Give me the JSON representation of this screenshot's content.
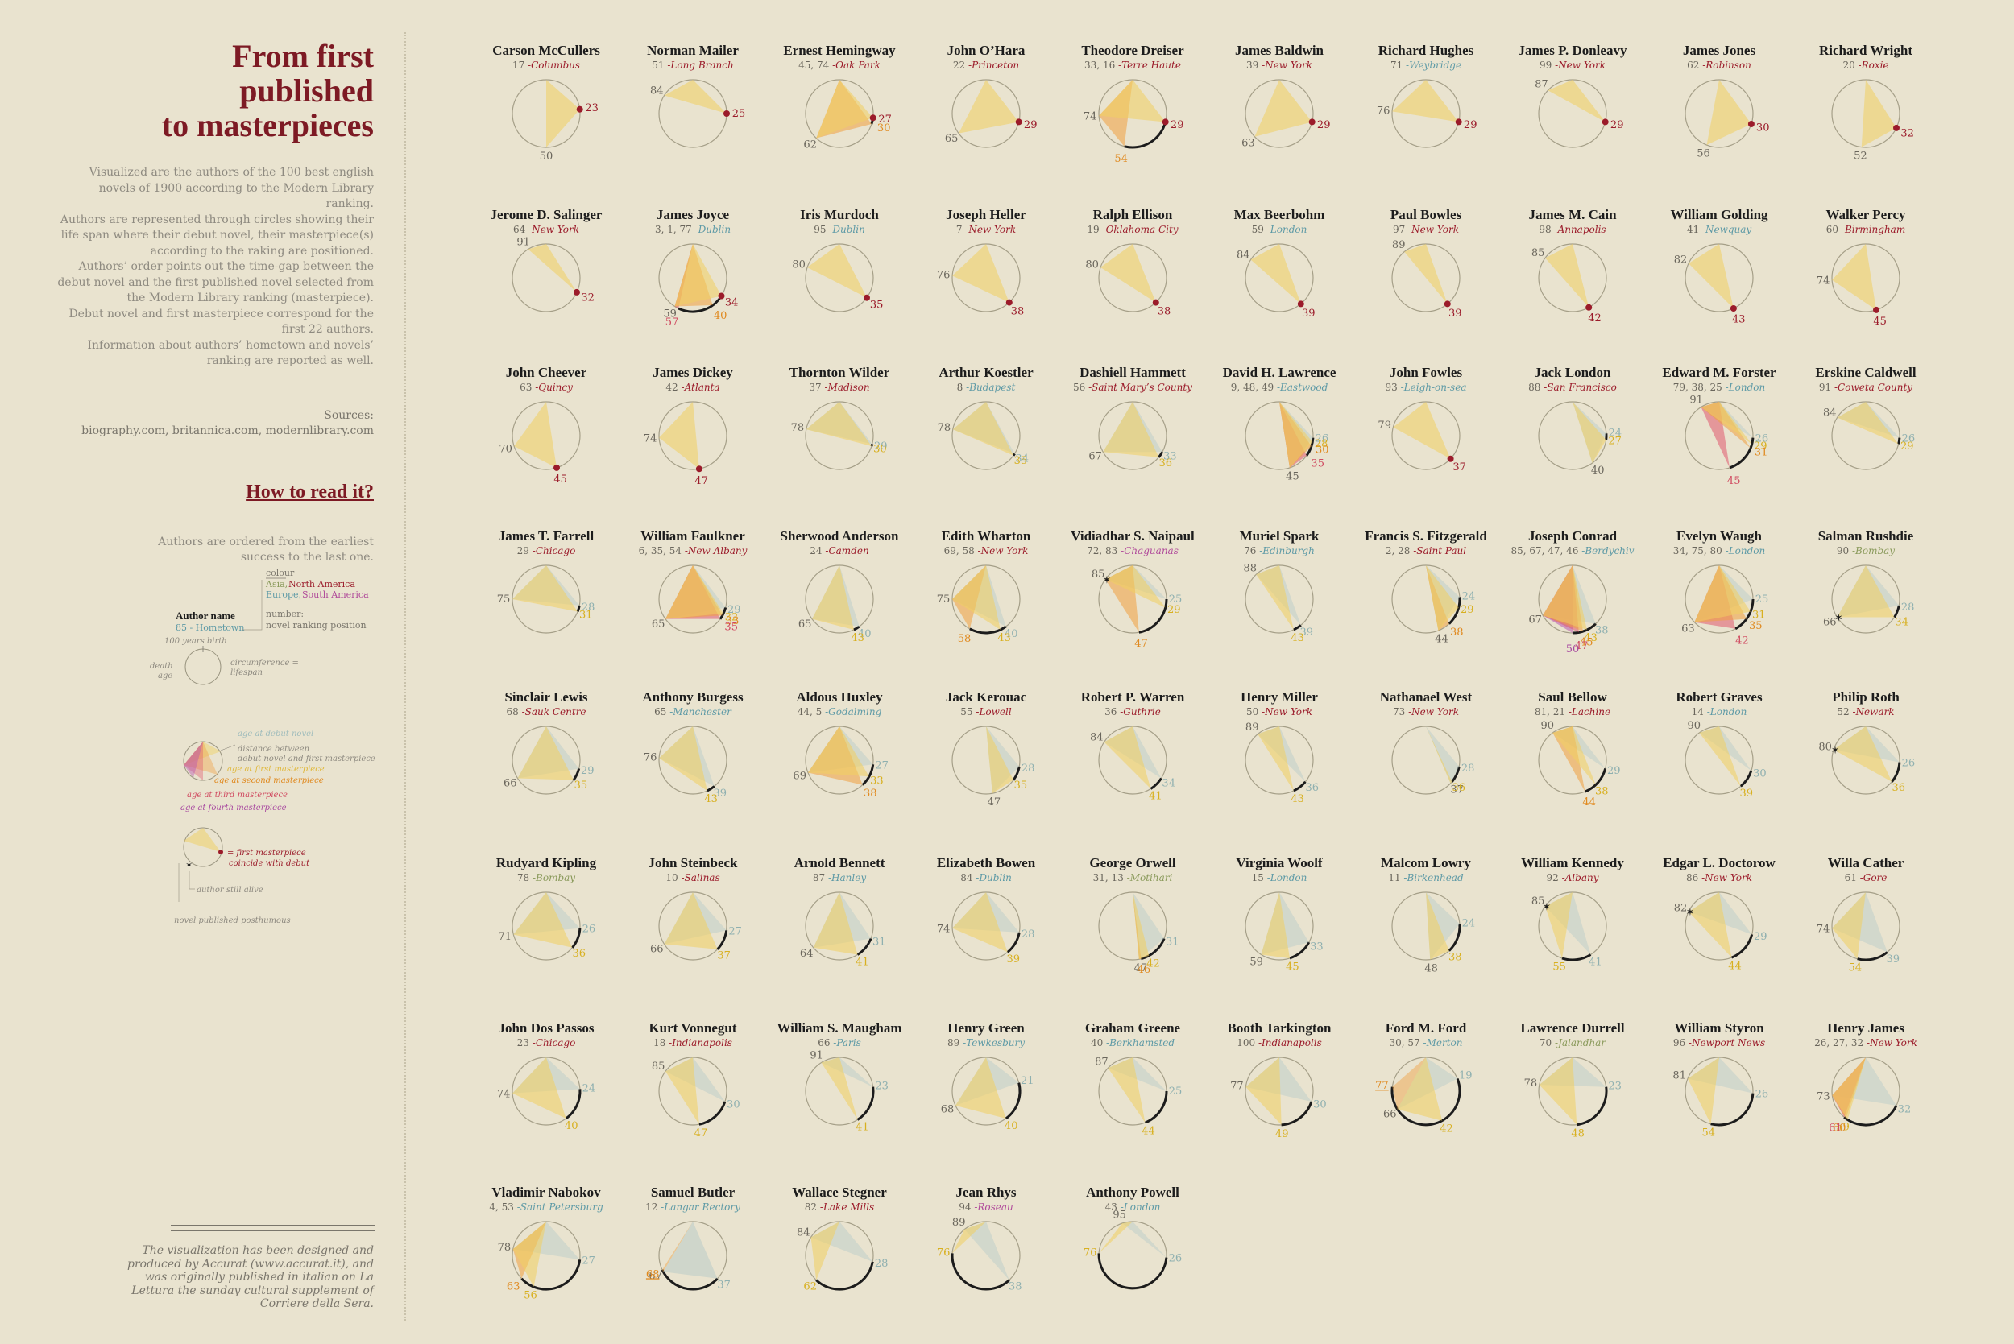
{
  "title_lines": [
    "From first",
    "published",
    "to masterpieces"
  ],
  "intro": [
    "Visualized are the authors of the 100 best english novels of 1900 according to the Modern Library ranking.",
    "Authors are represented through circles showing their life span where their debut novel, their masterpiece(s) according to the raking are positioned.",
    "Authors’ order points out the time-gap between the debut novel and the first published novel selected from the Modern Library ranking (masterpiece).",
    "Debut novel and first masterpiece correspond for the first 22 authors.",
    "Information about authors’ hometown and novels’ ranking are reported as well."
  ],
  "sources_label": "Sources:",
  "sources_text": "biography.com, britannica.com, modernlibrary.com",
  "howto_title": "How to read it?",
  "howto_intro": "Authors are ordered from the earliest success to the last one.",
  "legend": {
    "colour": "colour",
    "asia": "Asia,",
    "north_america": "North America",
    "europe": "Europe,",
    "south_america": "South America",
    "author_name": "Author name",
    "hometown_line": "85 - Hometown",
    "number": "number:",
    "ranking": "novel ranking position",
    "birth": "100 years birth",
    "death_age_1": "death",
    "death_age_2": "age",
    "circ_1": "circumference =",
    "circ_2": "lifespan",
    "debut": "age at debut novel",
    "distance_1": "distance between",
    "distance_2": "debut novel and first masterpiece",
    "first": "age at first masterpiece",
    "second": "age at second masterpiece",
    "third": "age at third masterpiece",
    "fourth": "age at fourth masterpiece",
    "coincide_1": "= first masterpiece",
    "coincide_2": "coincide with debut",
    "alive": "author still alive",
    "posthumous": "novel published posthumous"
  },
  "footer": "The visualization has been designed and produced by Accurat (www.accurat.it), and was originally published in italian on La Lettura the sunday cultural supplement of Corriere della Sera.",
  "colors": {
    "title": "#7d1a24",
    "north_america": "#9b1b2a",
    "europe": "#5e9aa6",
    "asia": "#8a9a5b",
    "south_america": "#b04a9a",
    "debut": "#b6c9c8",
    "first": "#f0d060",
    "second": "#f0a040",
    "third": "#e05a70",
    "fourth": "#b858b0"
  },
  "chart_data": {
    "type": "radial-small-multiples",
    "title": "From first published to masterpieces",
    "encoding": "circle circumference = lifespan (100 years = full turn, 0 at top); triangles connect age at death, debut novel and masterpieces",
    "authors": [
      {
        "name": "Carson McCullers",
        "ranks": "17",
        "hometown": "Columbus",
        "region": "na",
        "death": 50,
        "debut": 23,
        "masters": [
          23
        ]
      },
      {
        "name": "Norman Mailer",
        "ranks": "51",
        "hometown": "Long Branch",
        "region": "na",
        "death": 84,
        "debut": 25,
        "masters": [
          25
        ]
      },
      {
        "name": "Ernest Hemingway",
        "ranks": "45, 74",
        "hometown": "Oak Park",
        "region": "na",
        "death": 62,
        "debut": 27,
        "masters": [
          27,
          30
        ]
      },
      {
        "name": "John O’Hara",
        "ranks": "22",
        "hometown": "Princeton",
        "region": "na",
        "death": 65,
        "debut": 29,
        "masters": [
          29
        ]
      },
      {
        "name": "Theodore Dreiser",
        "ranks": "33, 16",
        "hometown": "Terre Haute",
        "region": "na",
        "death": 74,
        "debut": 29,
        "masters": [
          29,
          54
        ]
      },
      {
        "name": "James Baldwin",
        "ranks": "39",
        "hometown": "New York",
        "region": "na",
        "death": 63,
        "debut": 29,
        "masters": [
          29
        ]
      },
      {
        "name": "Richard Hughes",
        "ranks": "71",
        "hometown": "Weybridge",
        "region": "eu",
        "death": 76,
        "debut": 29,
        "masters": [
          29
        ]
      },
      {
        "name": "James P. Donleavy",
        "ranks": "99",
        "hometown": "New York",
        "region": "na",
        "death": 87,
        "debut": 29,
        "masters": [
          29
        ]
      },
      {
        "name": "James Jones",
        "ranks": "62",
        "hometown": "Robinson",
        "region": "na",
        "death": 56,
        "debut": 30,
        "masters": [
          30
        ]
      },
      {
        "name": "Richard Wright",
        "ranks": "20",
        "hometown": "Roxie",
        "region": "na",
        "death": 52,
        "debut": 32,
        "masters": [
          32
        ]
      },
      {
        "name": "Jerome D. Salinger",
        "ranks": "64",
        "hometown": "New York",
        "region": "na",
        "death": 91,
        "debut": 32,
        "masters": [
          32
        ]
      },
      {
        "name": "James Joyce",
        "ranks": "3, 1, 77",
        "hometown": "Dublin",
        "region": "eu",
        "death": 59,
        "debut": 34,
        "masters": [
          34,
          40,
          57
        ]
      },
      {
        "name": "Iris Murdoch",
        "ranks": "95",
        "hometown": "Dublin",
        "region": "eu",
        "death": 80,
        "debut": 35,
        "masters": [
          35
        ]
      },
      {
        "name": "Joseph Heller",
        "ranks": "7",
        "hometown": "New York",
        "region": "na",
        "death": 76,
        "debut": 38,
        "masters": [
          38
        ]
      },
      {
        "name": "Ralph Ellison",
        "ranks": "19",
        "hometown": "Oklahoma City",
        "region": "na",
        "death": 80,
        "debut": 38,
        "masters": [
          38
        ]
      },
      {
        "name": "Max Beerbohm",
        "ranks": "59",
        "hometown": "London",
        "region": "eu",
        "death": 84,
        "debut": 39,
        "masters": [
          39
        ]
      },
      {
        "name": "Paul Bowles",
        "ranks": "97",
        "hometown": "New York",
        "region": "na",
        "death": 89,
        "debut": 39,
        "masters": [
          39
        ]
      },
      {
        "name": "James M. Cain",
        "ranks": "98",
        "hometown": "Annapolis",
        "region": "na",
        "death": 85,
        "debut": 42,
        "masters": [
          42
        ]
      },
      {
        "name": "William Golding",
        "ranks": "41",
        "hometown": "Newquay",
        "region": "eu",
        "death": 82,
        "debut": 43,
        "masters": [
          43
        ]
      },
      {
        "name": "Walker Percy",
        "ranks": "60",
        "hometown": "Birmingham",
        "region": "na",
        "death": 74,
        "debut": 45,
        "masters": [
          45
        ]
      },
      {
        "name": "John Cheever",
        "ranks": "63",
        "hometown": "Quincy",
        "region": "na",
        "death": 70,
        "debut": 45,
        "masters": [
          45
        ]
      },
      {
        "name": "James Dickey",
        "ranks": "42",
        "hometown": "Atlanta",
        "region": "na",
        "death": 74,
        "debut": 47,
        "masters": [
          47
        ]
      },
      {
        "name": "Thornton Wilder",
        "ranks": "37",
        "hometown": "Madison",
        "region": "na",
        "death": 78,
        "debut": 29,
        "masters": [
          30
        ]
      },
      {
        "name": "Arthur Koestler",
        "ranks": "8",
        "hometown": "Budapest",
        "region": "eu",
        "death": 78,
        "debut": 34,
        "masters": [
          35
        ]
      },
      {
        "name": "Dashiell Hammett",
        "ranks": "56",
        "hometown": "Saint Mary’s County",
        "region": "na",
        "death": 67,
        "debut": 33,
        "masters": [
          36
        ]
      },
      {
        "name": "David H. Lawrence",
        "ranks": "9, 48, 49",
        "hometown": "Eastwood",
        "region": "eu",
        "death": 45,
        "debut": 26,
        "masters": [
          28,
          30,
          35
        ]
      },
      {
        "name": "John Fowles",
        "ranks": "93",
        "hometown": "Leigh-on-sea",
        "region": "eu",
        "death": 79,
        "debut": 37,
        "masters": [
          37
        ]
      },
      {
        "name": "Jack London",
        "ranks": "88",
        "hometown": "San Francisco",
        "region": "na",
        "death": 40,
        "debut": 24,
        "masters": [
          27
        ]
      },
      {
        "name": "Edward M. Forster",
        "ranks": "79, 38, 25",
        "hometown": "London",
        "region": "eu",
        "death": 91,
        "debut": 26,
        "masters": [
          29,
          31,
          45
        ]
      },
      {
        "name": "Erskine Caldwell",
        "ranks": "91",
        "hometown": "Coweta County",
        "region": "na",
        "death": 84,
        "debut": 26,
        "masters": [
          29
        ]
      },
      {
        "name": "James T. Farrell",
        "ranks": "29",
        "hometown": "Chicago",
        "region": "na",
        "death": 75,
        "debut": 28,
        "masters": [
          31
        ]
      },
      {
        "name": "William Faulkner",
        "ranks": "6, 35, 54",
        "hometown": "New Albany",
        "region": "na",
        "death": 65,
        "debut": 29,
        "masters": [
          32,
          33,
          35
        ]
      },
      {
        "name": "Sherwood Anderson",
        "ranks": "24",
        "hometown": "Camden",
        "region": "na",
        "death": 65,
        "debut": 40,
        "masters": [
          43
        ]
      },
      {
        "name": "Edith Wharton",
        "ranks": "69, 58",
        "hometown": "New York",
        "region": "na",
        "death": 75,
        "debut": 40,
        "masters": [
          43,
          58
        ]
      },
      {
        "name": "Vidiadhar S. Naipaul",
        "ranks": "72, 83",
        "hometown": "Chaguanas",
        "region": "sa",
        "death": 85,
        "alive": true,
        "debut": 25,
        "masters": [
          29,
          47
        ]
      },
      {
        "name": "Muriel Spark",
        "ranks": "76",
        "hometown": "Edinburgh",
        "region": "eu",
        "death": 88,
        "debut": 39,
        "masters": [
          43
        ]
      },
      {
        "name": "Francis S. Fitzgerald",
        "ranks": "2, 28",
        "hometown": "Saint Paul",
        "region": "na",
        "death": 44,
        "debut": 24,
        "masters": [
          29,
          38
        ]
      },
      {
        "name": "Joseph Conrad",
        "ranks": "85, 67, 47, 46",
        "hometown": "Berdychiv",
        "region": "eu",
        "death": 67,
        "debut": 38,
        "masters": [
          43,
          45,
          47,
          50
        ]
      },
      {
        "name": "Evelyn Waugh",
        "ranks": "34, 75, 80",
        "hometown": "London",
        "region": "eu",
        "death": 63,
        "debut": 25,
        "masters": [
          31,
          35,
          42
        ]
      },
      {
        "name": "Salman Rushdie",
        "ranks": "90",
        "hometown": "Bombay",
        "region": "as",
        "death": 66,
        "alive": true,
        "debut": 28,
        "masters": [
          34
        ]
      },
      {
        "name": "Sinclair Lewis",
        "ranks": "68",
        "hometown": "Sauk Centre",
        "region": "na",
        "death": 66,
        "debut": 29,
        "masters": [
          35
        ]
      },
      {
        "name": "Anthony Burgess",
        "ranks": "65",
        "hometown": "Manchester",
        "region": "eu",
        "death": 76,
        "debut": 39,
        "masters": [
          43
        ]
      },
      {
        "name": "Aldous Huxley",
        "ranks": "44, 5",
        "hometown": "Godalming",
        "region": "eu",
        "death": 69,
        "debut": 27,
        "masters": [
          33,
          38
        ]
      },
      {
        "name": "Jack Kerouac",
        "ranks": "55",
        "hometown": "Lowell",
        "region": "na",
        "death": 47,
        "debut": 28,
        "masters": [
          35
        ]
      },
      {
        "name": "Robert P. Warren",
        "ranks": "36",
        "hometown": "Guthrie",
        "region": "na",
        "death": 84,
        "debut": 34,
        "masters": [
          41
        ]
      },
      {
        "name": "Henry Miller",
        "ranks": "50",
        "hometown": "New York",
        "region": "na",
        "death": 89,
        "debut": 36,
        "masters": [
          43
        ]
      },
      {
        "name": "Nathanael West",
        "ranks": "73",
        "hometown": "New York",
        "region": "na",
        "death": 37,
        "debut": 28,
        "masters": [
          36
        ]
      },
      {
        "name": "Saul Bellow",
        "ranks": "81, 21",
        "hometown": "Lachine",
        "region": "na",
        "death": 90,
        "debut": 29,
        "masters": [
          38,
          44
        ]
      },
      {
        "name": "Robert Graves",
        "ranks": "14",
        "hometown": "London",
        "region": "eu",
        "death": 90,
        "debut": 30,
        "masters": [
          39
        ]
      },
      {
        "name": "Philip Roth",
        "ranks": "52",
        "hometown": "Newark",
        "region": "na",
        "death": 80,
        "alive": true,
        "debut": 26,
        "masters": [
          36
        ]
      },
      {
        "name": "Rudyard Kipling",
        "ranks": "78",
        "hometown": "Bombay",
        "region": "as",
        "death": 71,
        "debut": 26,
        "masters": [
          36
        ]
      },
      {
        "name": "John Steinbeck",
        "ranks": "10",
        "hometown": "Salinas",
        "region": "na",
        "death": 66,
        "debut": 27,
        "masters": [
          37
        ]
      },
      {
        "name": "Arnold Bennett",
        "ranks": "87",
        "hometown": "Hanley",
        "region": "eu",
        "death": 64,
        "debut": 31,
        "masters": [
          41
        ]
      },
      {
        "name": "Elizabeth Bowen",
        "ranks": "84",
        "hometown": "Dublin",
        "region": "eu",
        "death": 74,
        "debut": 28,
        "masters": [
          39
        ]
      },
      {
        "name": "George Orwell",
        "ranks": "31, 13",
        "hometown": "Motihari",
        "region": "as",
        "death": 47,
        "debut": 31,
        "masters": [
          42,
          46
        ]
      },
      {
        "name": "Virginia Woolf",
        "ranks": "15",
        "hometown": "London",
        "region": "eu",
        "death": 59,
        "debut": 33,
        "masters": [
          45
        ]
      },
      {
        "name": "Malcom Lowry",
        "ranks": "11",
        "hometown": "Birkenhead",
        "region": "eu",
        "death": 48,
        "debut": 24,
        "masters": [
          38
        ]
      },
      {
        "name": "William Kennedy",
        "ranks": "92",
        "hometown": "Albany",
        "region": "na",
        "death": 85,
        "alive": true,
        "debut": 41,
        "masters": [
          55
        ]
      },
      {
        "name": "Edgar L. Doctorow",
        "ranks": "86",
        "hometown": "New York",
        "region": "na",
        "death": 82,
        "alive": true,
        "debut": 29,
        "masters": [
          44
        ]
      },
      {
        "name": "Willa Cather",
        "ranks": "61",
        "hometown": "Gore",
        "region": "na",
        "death": 74,
        "debut": 39,
        "masters": [
          54
        ]
      },
      {
        "name": "John Dos Passos",
        "ranks": "23",
        "hometown": "Chicago",
        "region": "na",
        "death": 74,
        "debut": 24,
        "masters": [
          40
        ]
      },
      {
        "name": "Kurt Vonnegut",
        "ranks": "18",
        "hometown": "Indianapolis",
        "region": "na",
        "death": 85,
        "debut": 30,
        "masters": [
          47
        ]
      },
      {
        "name": "William S. Maugham",
        "ranks": "66",
        "hometown": "Paris",
        "region": "eu",
        "death": 91,
        "debut": 23,
        "masters": [
          41
        ]
      },
      {
        "name": "Henry Green",
        "ranks": "89",
        "hometown": "Tewkesbury",
        "region": "eu",
        "death": 68,
        "debut": 21,
        "masters": [
          40
        ]
      },
      {
        "name": "Graham Greene",
        "ranks": "40",
        "hometown": "Berkhamsted",
        "region": "eu",
        "death": 87,
        "debut": 25,
        "masters": [
          44
        ]
      },
      {
        "name": "Booth Tarkington",
        "ranks": "100",
        "hometown": "Indianapolis",
        "region": "na",
        "death": 77,
        "debut": 30,
        "masters": [
          49
        ]
      },
      {
        "name": "Ford M. Ford",
        "ranks": "30, 57",
        "hometown": "Merton",
        "region": "eu",
        "death": 66,
        "debut": 19,
        "masters": [
          42
        ],
        "posthumous": [
          77
        ]
      },
      {
        "name": "Lawrence Durrell",
        "ranks": "70",
        "hometown": "Jalandhar",
        "region": "as",
        "death": 78,
        "debut": 23,
        "masters": [
          48
        ]
      },
      {
        "name": "William Styron",
        "ranks": "96",
        "hometown": "Newport News",
        "region": "na",
        "death": 81,
        "debut": 26,
        "masters": [
          54
        ]
      },
      {
        "name": "Henry James",
        "ranks": "26, 27, 32",
        "hometown": "New York",
        "region": "na",
        "death": 73,
        "debut": 32,
        "masters": [
          59,
          60,
          61
        ]
      },
      {
        "name": "Vladimir  Nabokov",
        "ranks": "4, 53",
        "hometown": "Saint Petersburg",
        "region": "eu",
        "death": 78,
        "debut": 27,
        "masters": [
          56,
          63
        ]
      },
      {
        "name": "Samuel Butler",
        "ranks": "12",
        "hometown": "Langar Rectory",
        "region": "eu",
        "death": 67,
        "debut": 37,
        "masters": [],
        "posthumous": [
          68
        ]
      },
      {
        "name": "Wallace Stegner",
        "ranks": "82",
        "hometown": "Lake Mills",
        "region": "na",
        "death": 84,
        "debut": 28,
        "masters": [
          62
        ]
      },
      {
        "name": "Jean Rhys",
        "ranks": "94",
        "hometown": "Roseau",
        "region": "sa",
        "death": 89,
        "debut": 38,
        "masters": [
          76
        ]
      },
      {
        "name": "Anthony Powell",
        "ranks": "43",
        "hometown": "London",
        "region": "eu",
        "death": 95,
        "debut": 26,
        "masters": [
          76
        ]
      }
    ]
  }
}
